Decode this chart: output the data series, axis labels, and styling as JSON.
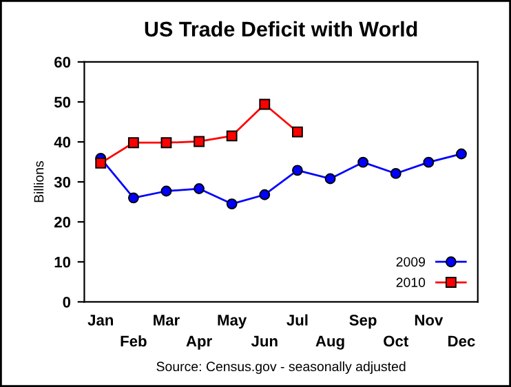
{
  "chart_data": {
    "type": "line",
    "title": "US Trade Deficit with World",
    "ylabel": "Billions",
    "categories": [
      "Jan",
      "Feb",
      "Mar",
      "Apr",
      "May",
      "Jun",
      "Jul",
      "Aug",
      "Sep",
      "Oct",
      "Nov",
      "Dec"
    ],
    "series": [
      {
        "name": "2009",
        "color": "#0000ff",
        "marker": "circle",
        "values": [
          35.9,
          26.0,
          27.7,
          28.3,
          24.5,
          26.8,
          32.9,
          30.8,
          34.9,
          32.1,
          34.9,
          37.0
        ]
      },
      {
        "name": "2010",
        "color": "#ff0000",
        "marker": "square",
        "values": [
          34.7,
          39.8,
          39.8,
          40.1,
          41.5,
          49.4,
          42.5,
          null,
          null,
          null,
          null,
          null
        ]
      }
    ],
    "ylim": [
      0,
      60
    ],
    "yticks": [
      0,
      10,
      20,
      30,
      40,
      50,
      60
    ],
    "grid": false,
    "legend": "bottom right",
    "line_style": "solid",
    "annotations": [
      "Source: Census.gov - seasonally adjusted"
    ]
  }
}
